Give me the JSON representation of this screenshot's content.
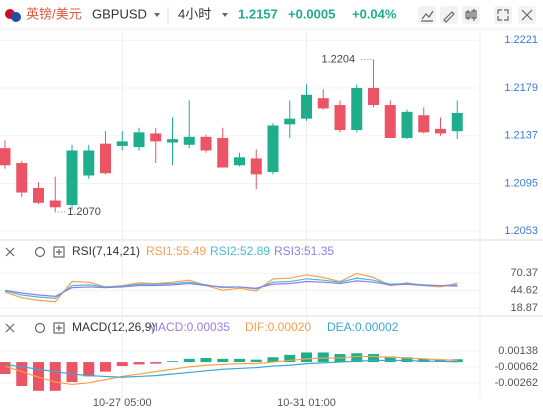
{
  "header": {
    "pair": "英镑/美元",
    "symbol": "GBPUSD",
    "period": "4小时",
    "price": "1.2157",
    "change": "+0.0005",
    "change_pct": "+0.04%"
  },
  "chart_data": [
    {
      "type": "candlestick",
      "categories": [
        null,
        null,
        null,
        null,
        null,
        null,
        null,
        "10-27 05:00",
        null,
        null,
        null,
        null,
        null,
        null,
        null,
        null,
        null,
        null,
        "10-31 01:00",
        null,
        null,
        null,
        null,
        null,
        null,
        null,
        null,
        null
      ],
      "open": [
        1.2126,
        1.2113,
        1.2091,
        1.208,
        1.2076,
        1.2102,
        1.213,
        1.2128,
        1.2127,
        1.2139,
        1.2131,
        1.2129,
        1.2136,
        1.2135,
        1.2111,
        1.2117,
        1.2105,
        1.2147,
        1.2152,
        1.217,
        1.2164,
        1.2142,
        1.2179,
        1.2164,
        1.2135,
        1.2155,
        1.2143,
        1.2141
      ],
      "high": [
        1.2133,
        1.2115,
        1.2096,
        1.2101,
        1.2129,
        1.2129,
        1.2141,
        1.2141,
        1.2144,
        1.2144,
        1.2153,
        1.2168,
        1.2138,
        1.2144,
        1.2122,
        1.2125,
        1.2148,
        1.2168,
        1.2182,
        1.2178,
        1.2168,
        1.2182,
        1.2204,
        1.2168,
        1.216,
        1.2162,
        1.2153,
        1.2168
      ],
      "low": [
        1.2108,
        1.2083,
        1.2077,
        1.207,
        1.2072,
        1.2099,
        1.2103,
        1.2124,
        1.2124,
        1.2113,
        1.2111,
        1.2126,
        1.2122,
        1.2109,
        1.211,
        1.209,
        1.2103,
        1.2135,
        1.215,
        1.216,
        1.214,
        1.214,
        1.2162,
        1.2135,
        1.2134,
        1.2139,
        1.2137,
        1.2134
      ],
      "close": [
        1.2111,
        1.2087,
        1.2078,
        1.2074,
        1.2124,
        1.2124,
        1.2104,
        1.2132,
        1.214,
        1.2132,
        1.2134,
        1.2136,
        1.2124,
        1.2109,
        1.2118,
        1.2103,
        1.2146,
        1.2152,
        1.2173,
        1.2161,
        1.2142,
        1.2179,
        1.2164,
        1.2135,
        1.2158,
        1.214,
        1.2139,
        1.2157
      ],
      "up_color": "#1fae8b",
      "down_color": "#ea5465",
      "annotations": [
        {
          "value": 1.2204,
          "label": "1.2204",
          "at": "high"
        },
        {
          "value": 1.207,
          "label": "1.2070",
          "at": "low"
        }
      ],
      "ylim": [
        1.2047,
        1.223
      ],
      "yticks": [
        1.2221,
        1.2179,
        1.2137,
        1.2095,
        1.2053
      ],
      "grid": true
    },
    {
      "type": "line",
      "title": "RSI(7,14,21)",
      "series": [
        {
          "name": "RSI1:55.49",
          "color": "#f5a04c",
          "values": [
            42,
            34,
            30,
            28,
            58,
            57,
            50,
            52,
            56,
            55,
            57,
            60,
            52,
            45,
            48,
            44,
            62,
            63,
            68,
            64,
            58,
            70,
            64,
            52,
            56,
            52,
            50,
            55.49
          ]
        },
        {
          "name": "RSI2:52.89",
          "color": "#4db8d6",
          "values": [
            44,
            38,
            35,
            33,
            52,
            53,
            50,
            51,
            54,
            54,
            55,
            57,
            53,
            49,
            50,
            47,
            57,
            58,
            62,
            60,
            57,
            63,
            60,
            54,
            55,
            53,
            52,
            52.89
          ]
        },
        {
          "name": "RSI3:51.35",
          "color": "#8f7ee0",
          "values": [
            45,
            41,
            38,
            36,
            49,
            50,
            49,
            50,
            52,
            52,
            53,
            55,
            52,
            50,
            50,
            48,
            54,
            55,
            58,
            57,
            55,
            59,
            57,
            53,
            54,
            52,
            52,
            51.35
          ]
        }
      ],
      "ylim": [
        9.8,
        87
      ],
      "yticks": [
        70.37,
        44.62,
        18.87
      ]
    },
    {
      "type": "macd",
      "title": "MACD(12,26,9)",
      "series": [
        {
          "name": "MACD:0.00035",
          "color": "#9a7ee6",
          "up_color": "#1fae8b",
          "down_color": "#ea5465",
          "values": [
            -0.0015,
            -0.003,
            -0.0036,
            -0.0036,
            -0.0025,
            -0.0018,
            -0.0012,
            -0.0005,
            -0.0003,
            -0.0002,
            0.0001,
            0.0004,
            0.0005,
            0.0004,
            0.0004,
            0.0003,
            0.0006,
            0.0009,
            0.0012,
            0.0012,
            0.001,
            0.0011,
            0.001,
            0.0007,
            0.0006,
            0.0004,
            0.0003,
            0.00035
          ]
        },
        {
          "name": "DIF:0.00020",
          "color": "#f5a04c",
          "values": [
            -0.0005,
            -0.0012,
            -0.0019,
            -0.0025,
            -0.0028,
            -0.0026,
            -0.0022,
            -0.0018,
            -0.0015,
            -0.0012,
            -0.0009,
            -0.0006,
            -0.0004,
            -0.0003,
            -0.0002,
            -0.0002,
            0,
            0.0002,
            0.0004,
            0.0005,
            0.0005,
            0.0007,
            0.0007,
            0.0006,
            0.0005,
            0.0004,
            0.0003,
            0.0002
          ]
        },
        {
          "name": "DEA:0.00002",
          "color": "#3aa8d0",
          "values": [
            -0.0003,
            -0.0006,
            -0.0009,
            -0.0012,
            -0.0015,
            -0.0017,
            -0.0018,
            -0.0019,
            -0.0018,
            -0.0017,
            -0.0015,
            -0.0013,
            -0.0011,
            -0.0009,
            -0.0008,
            -0.0007,
            -0.0005,
            -0.0004,
            -0.0002,
            -0.0001,
            0,
            0.0001,
            0.0002,
            0.0002,
            0.0002,
            0.0001,
            0.0001,
            2e-05
          ]
        }
      ],
      "ylim": [
        -0.0045,
        0.00276
      ],
      "yticks": [
        0.00138,
        -0.00062,
        -0.00262
      ]
    }
  ]
}
